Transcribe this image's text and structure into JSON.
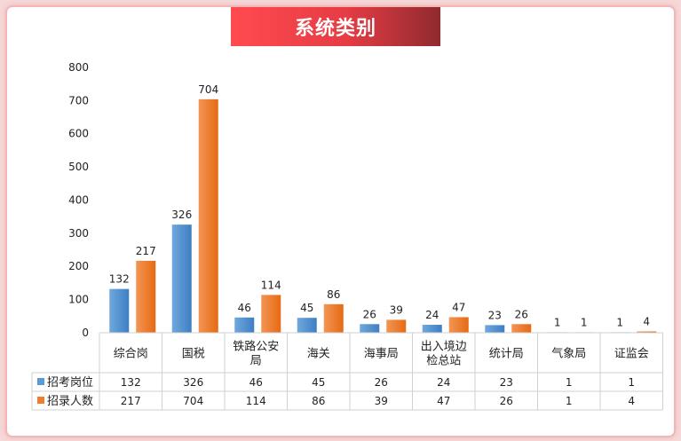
{
  "title": "系统类别",
  "chart_data": {
    "type": "bar",
    "categories": [
      [
        "综合岗"
      ],
      [
        "国税"
      ],
      [
        "铁路公安",
        "局"
      ],
      [
        "海关"
      ],
      [
        "海事局"
      ],
      [
        "出入境边",
        "检总站"
      ],
      [
        "统计局"
      ],
      [
        "气象局"
      ],
      [
        "证监会"
      ]
    ],
    "series": [
      {
        "name": "招考岗位",
        "color": "#5b9bd5",
        "values": [
          132,
          326,
          46,
          45,
          26,
          24,
          23,
          1,
          1
        ]
      },
      {
        "name": "招录人数",
        "color": "#ed7d31",
        "values": [
          217,
          704,
          114,
          86,
          39,
          47,
          26,
          1,
          4
        ]
      }
    ],
    "yticks": [
      0,
      100,
      200,
      300,
      400,
      500,
      600,
      700,
      800
    ],
    "ylim": [
      0,
      800
    ],
    "data_table": true
  }
}
